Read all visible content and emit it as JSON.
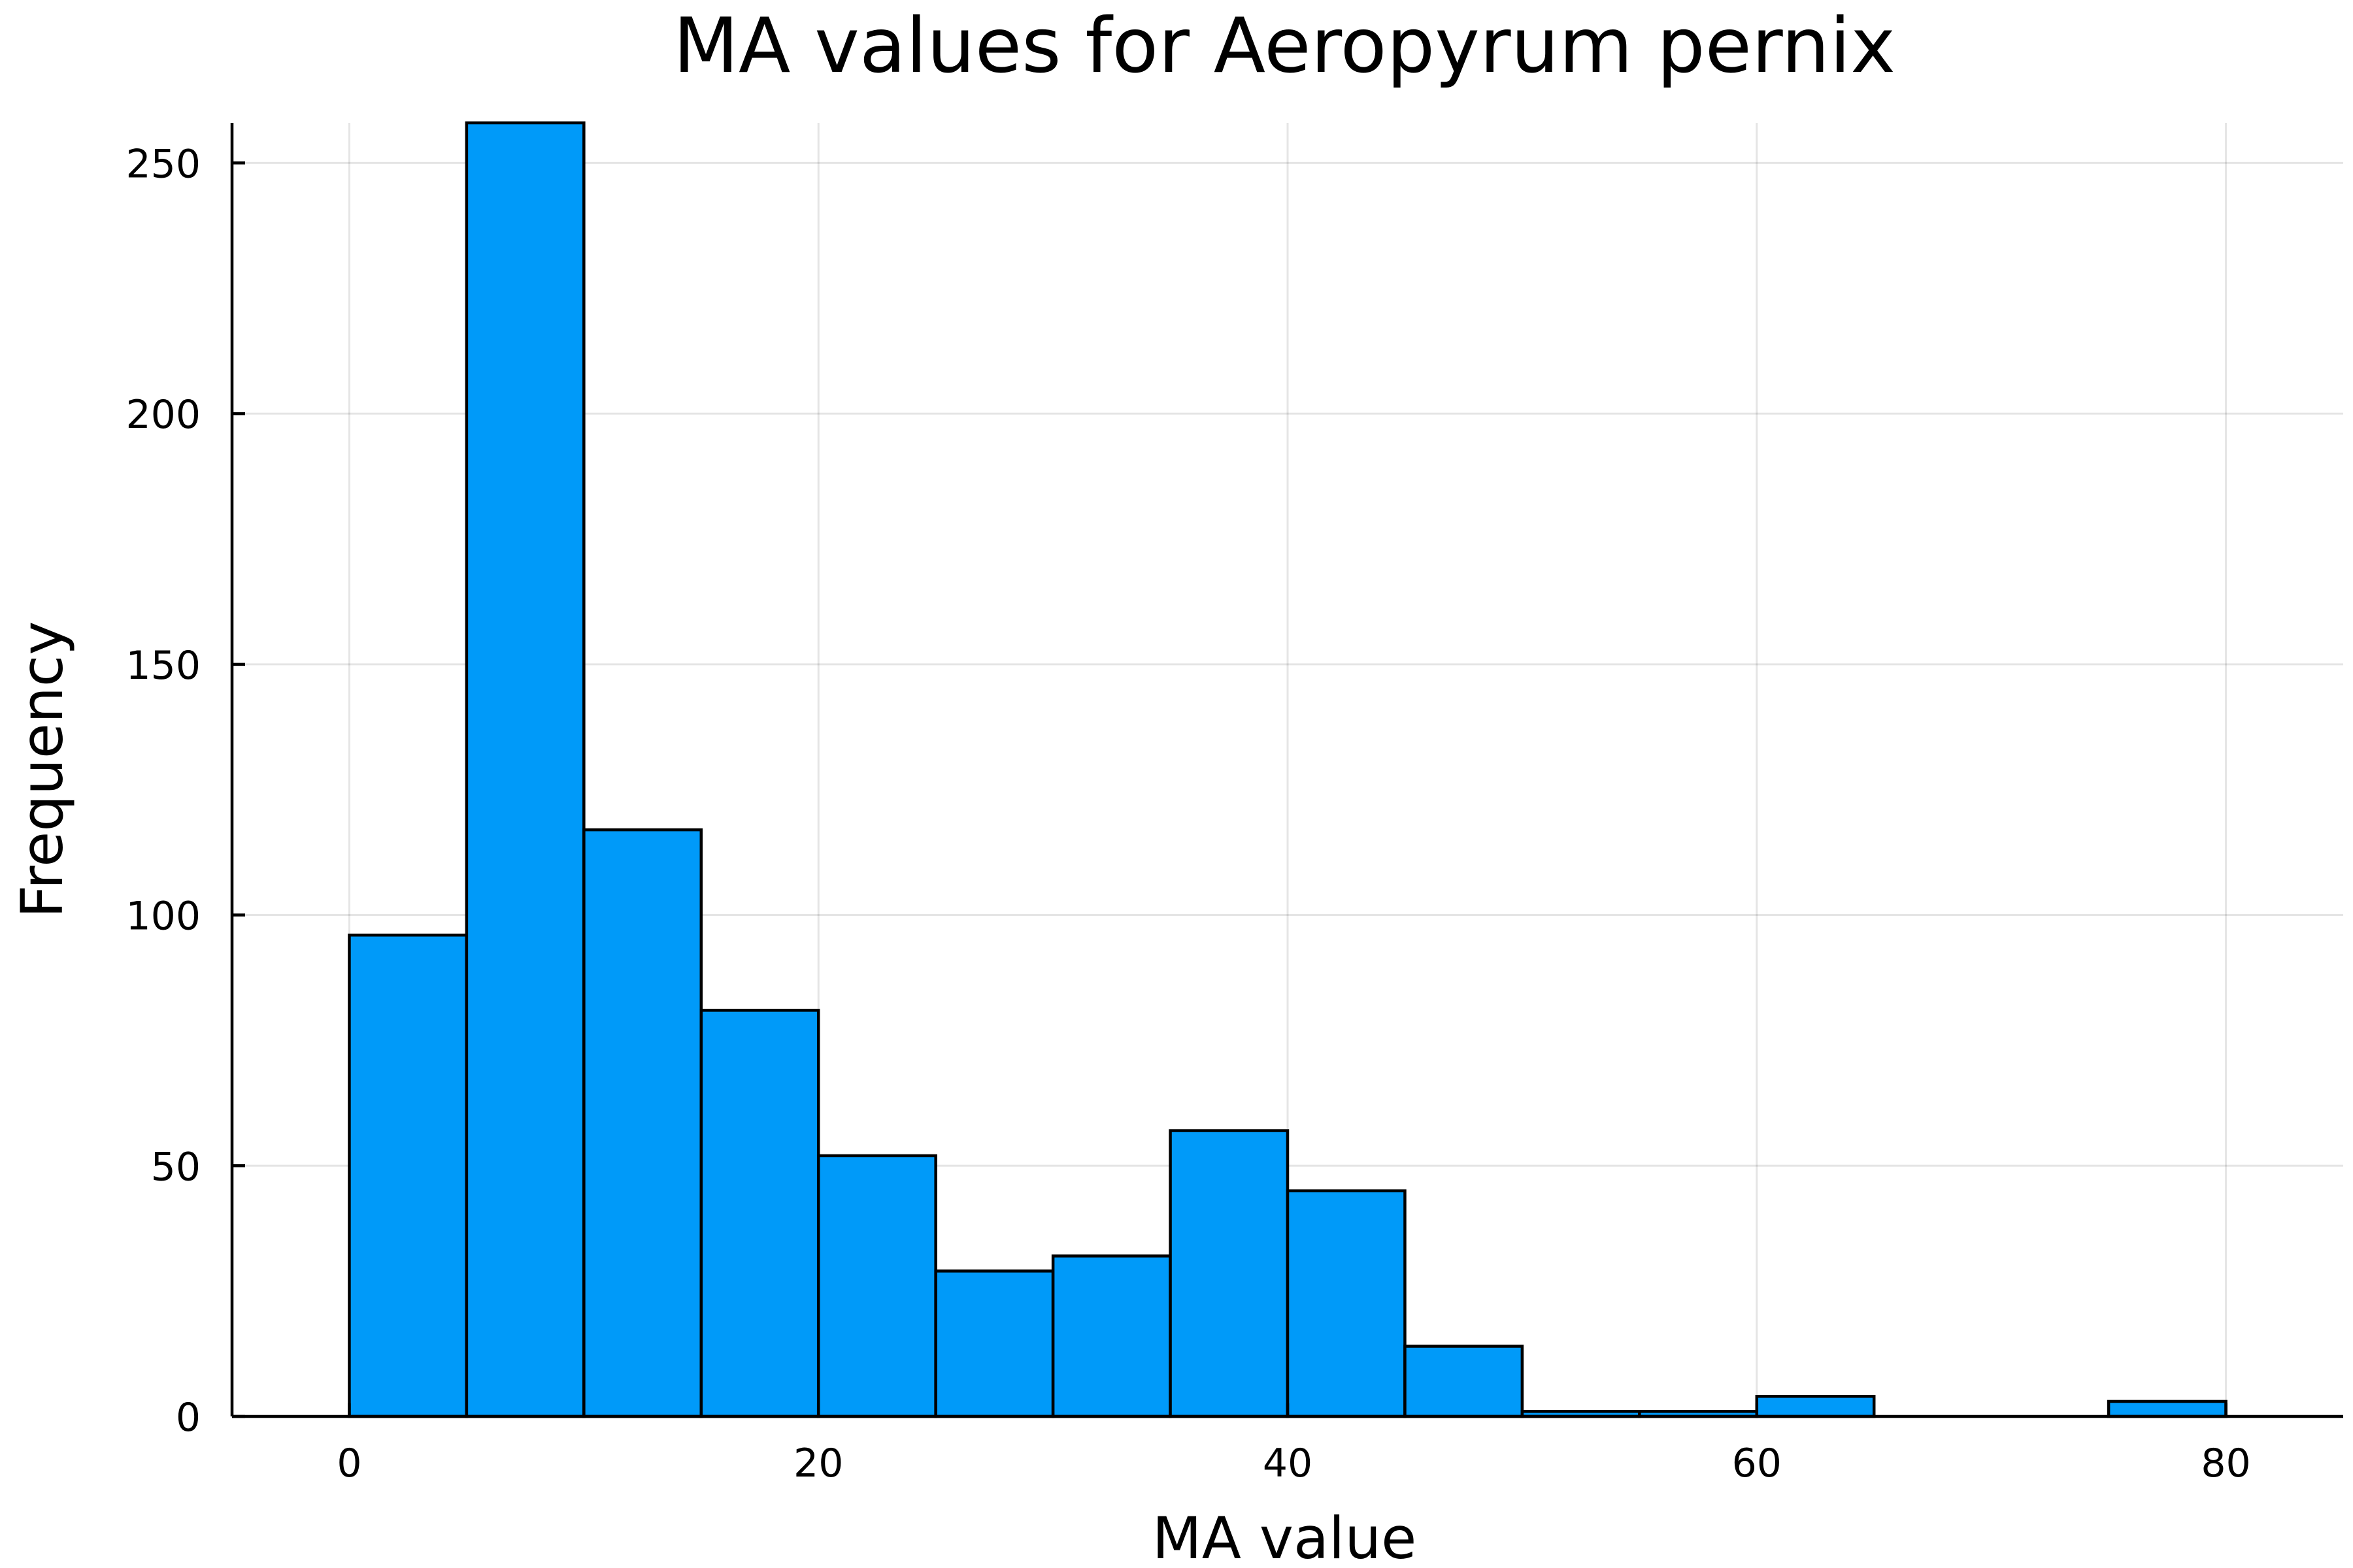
{
  "chart_data": {
    "type": "bar",
    "title": "MA values for Aeropyrum pernix",
    "xlabel": "MA value",
    "ylabel": "Frequency",
    "bin_width": 5,
    "bins": [
      {
        "x0": 0,
        "x1": 5,
        "value": 96
      },
      {
        "x0": 5,
        "x1": 10,
        "value": 258
      },
      {
        "x0": 10,
        "x1": 15,
        "value": 117
      },
      {
        "x0": 15,
        "x1": 20,
        "value": 81
      },
      {
        "x0": 20,
        "x1": 25,
        "value": 52
      },
      {
        "x0": 25,
        "x1": 30,
        "value": 29
      },
      {
        "x0": 30,
        "x1": 35,
        "value": 32
      },
      {
        "x0": 35,
        "x1": 40,
        "value": 57
      },
      {
        "x0": 40,
        "x1": 45,
        "value": 45
      },
      {
        "x0": 45,
        "x1": 50,
        "value": 14
      },
      {
        "x0": 50,
        "x1": 55,
        "value": 1
      },
      {
        "x0": 55,
        "x1": 60,
        "value": 1
      },
      {
        "x0": 60,
        "x1": 65,
        "value": 4
      },
      {
        "x0": 65,
        "x1": 70,
        "value": 0
      },
      {
        "x0": 70,
        "x1": 75,
        "value": 0
      },
      {
        "x0": 75,
        "x1": 80,
        "value": 3
      }
    ],
    "xlim": [
      -5,
      85
    ],
    "ylim": [
      0,
      258
    ],
    "xticks": [
      0,
      20,
      40,
      60,
      80
    ],
    "yticks": [
      0,
      50,
      100,
      150,
      200,
      250
    ],
    "grid": true,
    "legend": "none",
    "bar_color": "#009af9",
    "edge_color": "#000000"
  }
}
